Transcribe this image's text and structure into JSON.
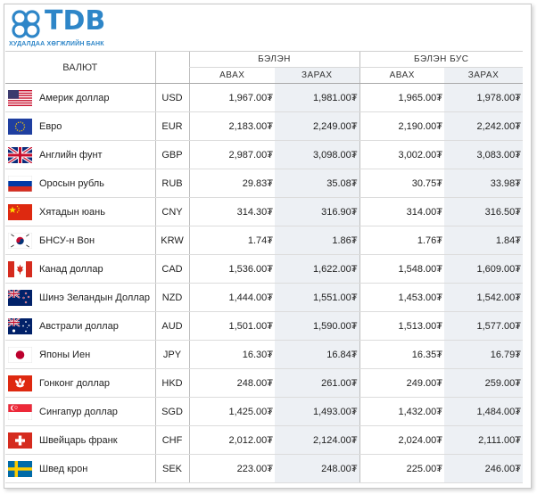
{
  "brand": {
    "name": "TDB",
    "subtitle": "ХУДАЛДАА ХӨГЖЛИЙН БАНК",
    "color": "#2e86c8"
  },
  "table": {
    "currency_header": "ВАЛЮТ",
    "cash_header": "БЭЛЭН",
    "noncash_header": "БЭЛЭН БУС",
    "buy_label": "АВАХ",
    "sell_label": "ЗАРАХ",
    "rows": [
      {
        "flag": "us-flag-icon",
        "name": "Америк доллар",
        "code": "USD",
        "cash_buy": "1,967.00₮",
        "cash_sell": "1,981.00₮",
        "noncash_buy": "1,965.00₮",
        "noncash_sell": "1,978.00₮"
      },
      {
        "flag": "eu-flag-icon",
        "name": "Евро",
        "code": "EUR",
        "cash_buy": "2,183.00₮",
        "cash_sell": "2,249.00₮",
        "noncash_buy": "2,190.00₮",
        "noncash_sell": "2,242.00₮"
      },
      {
        "flag": "uk-flag-icon",
        "name": "Английн фунт",
        "code": "GBP",
        "cash_buy": "2,987.00₮",
        "cash_sell": "3,098.00₮",
        "noncash_buy": "3,002.00₮",
        "noncash_sell": "3,083.00₮"
      },
      {
        "flag": "ru-flag-icon",
        "name": "Оросын рубль",
        "code": "RUB",
        "cash_buy": "29.83₮",
        "cash_sell": "35.08₮",
        "noncash_buy": "30.75₮",
        "noncash_sell": "33.98₮"
      },
      {
        "flag": "cn-flag-icon",
        "name": "Хятадын юань",
        "code": "CNY",
        "cash_buy": "314.30₮",
        "cash_sell": "316.90₮",
        "noncash_buy": "314.00₮",
        "noncash_sell": "316.50₮"
      },
      {
        "flag": "kr-flag-icon",
        "name": "БНСУ-н Вон",
        "code": "KRW",
        "cash_buy": "1.74₮",
        "cash_sell": "1.86₮",
        "noncash_buy": "1.76₮",
        "noncash_sell": "1.84₮"
      },
      {
        "flag": "ca-flag-icon",
        "name": "Канад доллар",
        "code": "CAD",
        "cash_buy": "1,536.00₮",
        "cash_sell": "1,622.00₮",
        "noncash_buy": "1,548.00₮",
        "noncash_sell": "1,609.00₮"
      },
      {
        "flag": "nz-flag-icon",
        "name": "Шинэ Зеландын Доллар",
        "code": "NZD",
        "cash_buy": "1,444.00₮",
        "cash_sell": "1,551.00₮",
        "noncash_buy": "1,453.00₮",
        "noncash_sell": "1,542.00₮"
      },
      {
        "flag": "au-flag-icon",
        "name": "Австрали доллар",
        "code": "AUD",
        "cash_buy": "1,501.00₮",
        "cash_sell": "1,590.00₮",
        "noncash_buy": "1,513.00₮",
        "noncash_sell": "1,577.00₮"
      },
      {
        "flag": "jp-flag-icon",
        "name": "Японы Иен",
        "code": "JPY",
        "cash_buy": "16.30₮",
        "cash_sell": "16.84₮",
        "noncash_buy": "16.35₮",
        "noncash_sell": "16.79₮"
      },
      {
        "flag": "hk-flag-icon",
        "name": "Гонконг доллар",
        "code": "HKD",
        "cash_buy": "248.00₮",
        "cash_sell": "261.00₮",
        "noncash_buy": "249.00₮",
        "noncash_sell": "259.00₮"
      },
      {
        "flag": "sg-flag-icon",
        "name": "Сингапур доллар",
        "code": "SGD",
        "cash_buy": "1,425.00₮",
        "cash_sell": "1,493.00₮",
        "noncash_buy": "1,432.00₮",
        "noncash_sell": "1,484.00₮"
      },
      {
        "flag": "ch-flag-icon",
        "name": "Швейцарь франк",
        "code": "CHF",
        "cash_buy": "2,012.00₮",
        "cash_sell": "2,124.00₮",
        "noncash_buy": "2,024.00₮",
        "noncash_sell": "2,111.00₮"
      },
      {
        "flag": "se-flag-icon",
        "name": "Швед крон",
        "code": "SEK",
        "cash_buy": "223.00₮",
        "cash_sell": "248.00₮",
        "noncash_buy": "225.00₮",
        "noncash_sell": "246.00₮"
      }
    ]
  }
}
